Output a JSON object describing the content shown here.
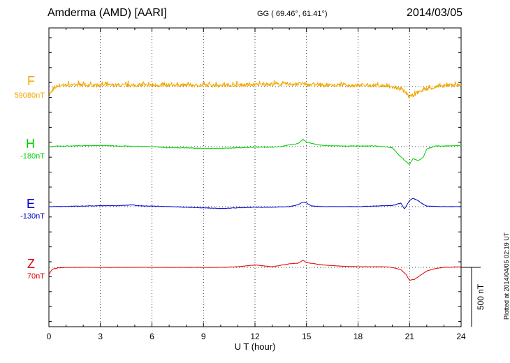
{
  "header": {
    "station": "Amderma (AMD)  [AARI]",
    "coords": "GG ( 69.46°,  61.41°)",
    "date": "2014/03/05",
    "plotted": "Plotted at 2014/04/05 02:19 UT"
  },
  "colors": {
    "F": "#f0a800",
    "H": "#00d000",
    "E": "#0000d0",
    "Z": "#e00000"
  },
  "chart_data": {
    "type": "line",
    "xlabel": "U T (hour)",
    "xlim": [
      0,
      24
    ],
    "xticks": [
      "0",
      "3",
      "6",
      "9",
      "12",
      "15",
      "18",
      "21",
      "24"
    ],
    "scale_label": "500 nT",
    "scale_value_nT": 500,
    "series": [
      {
        "name": "F",
        "baseline": "59080nT",
        "x": [
          0,
          0.2,
          0.5,
          1,
          2,
          3,
          4,
          5,
          6,
          7,
          8,
          9,
          10,
          11,
          12,
          13,
          14,
          14.8,
          15,
          16,
          17,
          18,
          19,
          19.5,
          20,
          20.5,
          20.8,
          21,
          21.3,
          21.6,
          22,
          22.5,
          23,
          23.5,
          24
        ],
        "y": [
          -80,
          -30,
          5,
          10,
          12,
          10,
          12,
          10,
          12,
          10,
          12,
          10,
          12,
          14,
          15,
          18,
          20,
          22,
          15,
          12,
          10,
          10,
          10,
          5,
          -5,
          -25,
          -55,
          -85,
          -70,
          -40,
          -20,
          -5,
          5,
          15,
          10
        ],
        "noise": 28
      },
      {
        "name": "H",
        "baseline": "-180nT",
        "x": [
          0,
          0.5,
          1,
          2,
          3,
          4,
          5,
          6,
          7,
          8,
          9,
          10,
          11,
          12,
          13,
          13.5,
          14,
          14.5,
          14.8,
          15,
          15.5,
          16,
          17,
          18,
          19,
          19.5,
          20,
          20.3,
          20.6,
          20.9,
          21,
          21.2,
          21.5,
          21.8,
          22,
          22.5,
          23,
          24
        ],
        "y": [
          -5,
          5,
          5,
          8,
          10,
          5,
          3,
          0,
          -10,
          -10,
          -15,
          -15,
          -10,
          -5,
          -5,
          0,
          15,
          25,
          60,
          40,
          20,
          10,
          5,
          5,
          5,
          0,
          -10,
          -60,
          -100,
          -140,
          -150,
          -100,
          -120,
          -90,
          -20,
          5,
          5,
          10
        ],
        "noise": 5
      },
      {
        "name": "E",
        "baseline": "-130nT",
        "x": [
          0,
          1,
          2,
          3,
          4,
          4.9,
          5.1,
          6,
          7,
          8,
          9,
          10,
          11,
          12,
          13,
          14,
          14.5,
          14.8,
          15,
          15.3,
          16,
          17,
          18,
          19,
          20,
          20.5,
          20.7,
          21,
          21.2,
          21.5,
          21.8,
          22,
          23,
          24
        ],
        "y": [
          0,
          2,
          5,
          8,
          8,
          15,
          8,
          5,
          0,
          -5,
          -10,
          -15,
          -10,
          -5,
          -5,
          0,
          15,
          40,
          30,
          5,
          0,
          0,
          0,
          5,
          10,
          30,
          -20,
          50,
          70,
          50,
          20,
          5,
          0,
          0
        ],
        "noise": 4
      },
      {
        "name": "Z",
        "baseline": "70nT",
        "x": [
          0,
          0.2,
          0.5,
          1,
          2,
          3,
          4,
          5,
          6,
          7,
          8,
          9,
          10,
          11,
          12,
          13,
          14,
          14.5,
          14.8,
          15,
          15.5,
          16,
          17,
          18,
          19,
          19.5,
          20,
          20.5,
          20.8,
          21,
          21.3,
          21.6,
          22,
          22.5,
          23,
          24
        ],
        "y": [
          -60,
          -15,
          -5,
          0,
          0,
          0,
          0,
          0,
          0,
          0,
          0,
          0,
          0,
          5,
          20,
          5,
          30,
          35,
          60,
          40,
          30,
          20,
          10,
          5,
          5,
          5,
          0,
          -20,
          -60,
          -110,
          -100,
          -70,
          -30,
          -10,
          0,
          5
        ],
        "noise": 3
      }
    ]
  }
}
